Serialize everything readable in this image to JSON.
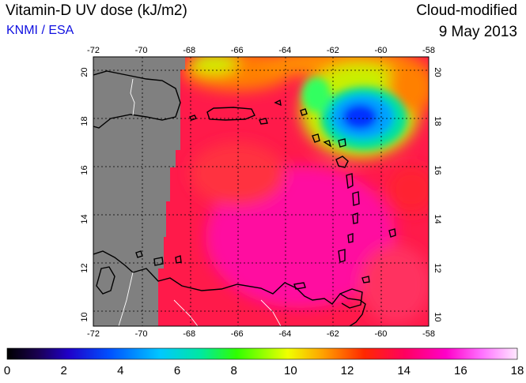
{
  "header": {
    "title": "Vitamin-D UV dose (kJ/m2)",
    "credit": "KNMI / ESA",
    "product": "Cloud-modified",
    "date": "9 May 2013"
  },
  "map": {
    "lon_ticks": [
      -72,
      -70,
      -68,
      -66,
      -64,
      -62,
      -60,
      -58
    ],
    "lat_ticks": [
      10,
      12,
      14,
      16,
      18,
      20
    ],
    "lon_range": [
      -72,
      -58
    ],
    "lat_range": [
      9.5,
      20.5
    ],
    "grid": true,
    "no_data_color": "#808080"
  },
  "colorbar": {
    "min": 0,
    "max": 18,
    "tick_values": [
      0,
      2,
      4,
      6,
      8,
      10,
      12,
      14,
      16,
      18
    ],
    "tick_labels": [
      "0",
      "2",
      "4",
      "6",
      "8",
      "10",
      "12",
      "14",
      "16",
      "18"
    ]
  }
}
